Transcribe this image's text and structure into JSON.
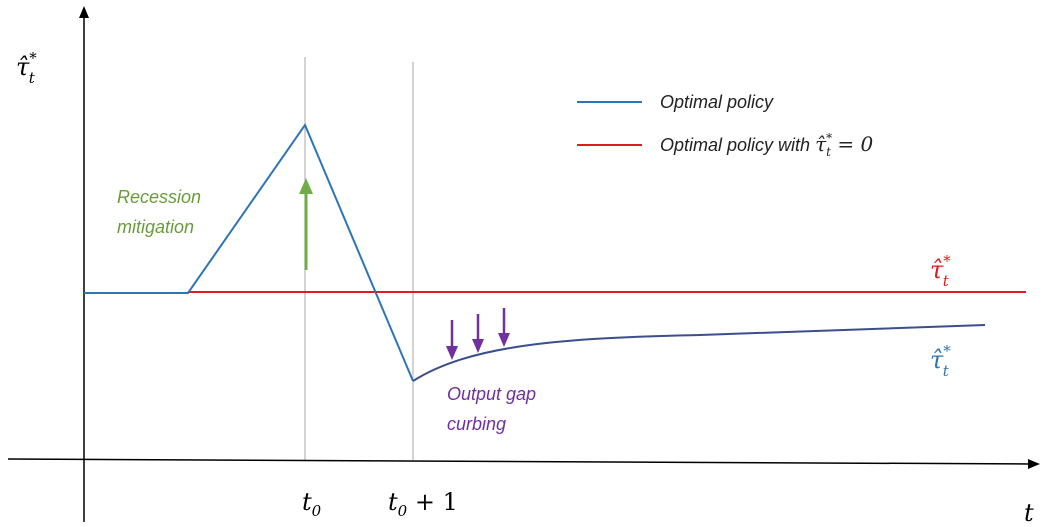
{
  "axes": {
    "y_label": "τ̂*t",
    "x_label": "t",
    "x_ticks": [
      {
        "label": "t0"
      },
      {
        "label": "t0 + 1"
      }
    ]
  },
  "legend": {
    "items": [
      {
        "label": "Optimal policy",
        "color": "#2e75b6"
      },
      {
        "label_prefix": "Optimal policy with ",
        "label_math": "τ̂*t = 0",
        "color": "#e31a1c"
      }
    ]
  },
  "annotations": {
    "recession": {
      "line1": "Recession",
      "line2": "mitigation",
      "color": "#6a9b3a"
    },
    "output_gap": {
      "line1": "Output gap",
      "line2": "curbing",
      "color": "#7030a0"
    },
    "red_line_label": {
      "text": "τ̂*t",
      "color": "#e31a1c"
    },
    "blue_curve_label": {
      "text": "τ̂*t",
      "color": "#2e75b6"
    }
  },
  "colors": {
    "optimal_policy": "#2e75b6",
    "optimal_policy_dark": "#3a4f8c",
    "zero_policy": "#e31a1c",
    "green_arrow": "#70ad47",
    "purple_arrows": "#7030a0",
    "axis": "#000000",
    "guide": "#b0b0b0"
  }
}
